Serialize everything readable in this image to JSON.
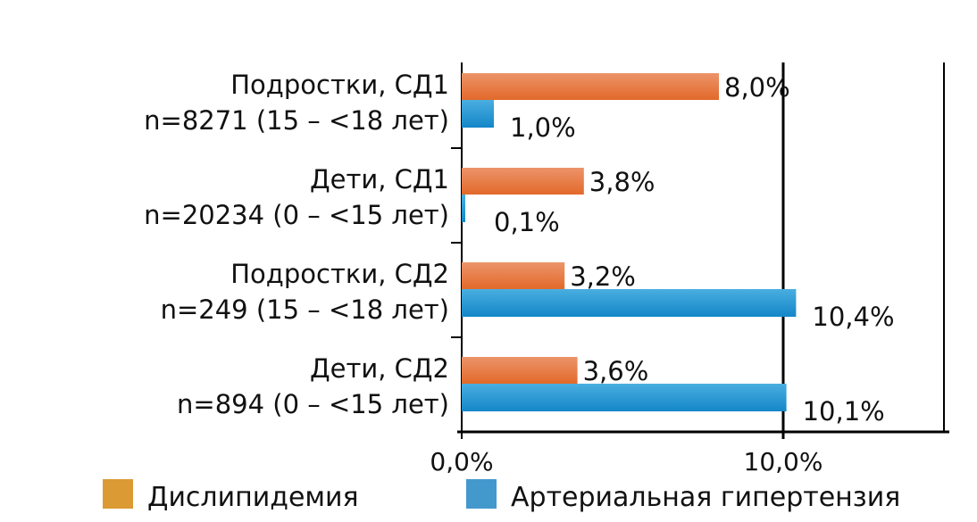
{
  "chart_data": {
    "type": "bar",
    "orientation": "horizontal",
    "categories": [
      [
        "Подростки, СД1",
        "n=8271 (15 – <18 лет)"
      ],
      [
        "Дети, СД1",
        "n=20234 (0 – <15 лет)"
      ],
      [
        "Подростки, СД2",
        "n=249 (15 – <18 лет)"
      ],
      [
        "Дети, СД2",
        "n=894 (0 – <15 лет)"
      ]
    ],
    "series": [
      {
        "name": "Дислипидемия",
        "values": [
          8.0,
          3.8,
          3.2,
          3.6
        ],
        "labels": [
          "8,0%",
          "3,8%",
          "3,2%",
          "3,6%"
        ],
        "color": "#e3702f",
        "legend_color": "#dc9a34"
      },
      {
        "name": "Артериальная гипертензия",
        "values": [
          1.0,
          0.1,
          10.4,
          10.1
        ],
        "labels": [
          "1,0%",
          "0,1%",
          "10,4%",
          "10,1%"
        ],
        "color": "#1e90d0",
        "legend_color": "#4499cc"
      }
    ],
    "xticks": [
      0,
      10
    ],
    "xtick_labels": [
      "0,0%",
      "10,0%"
    ],
    "xlim": [
      0,
      15
    ],
    "legend": "bottom",
    "title": "",
    "xlabel": "",
    "ylabel": ""
  }
}
